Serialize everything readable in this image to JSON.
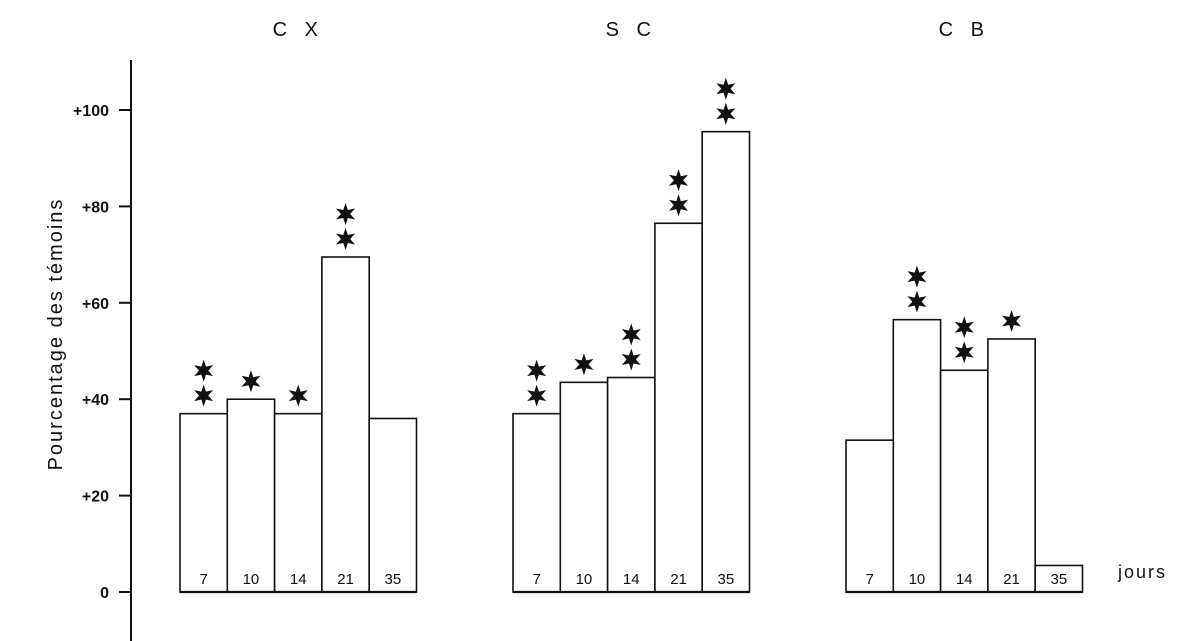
{
  "chart_data": {
    "type": "bar",
    "ylabel": "Pourcentage des témoins",
    "y_ticks": [
      "0",
      "+20",
      "+40",
      "+60",
      "+80",
      "+100"
    ],
    "y_tick_values": [
      0,
      20,
      40,
      60,
      80,
      100
    ],
    "ylim": [
      -20,
      110
    ],
    "unit_label": "jours",
    "groups": [
      {
        "name": "C X",
        "categories": [
          "7",
          "10",
          "14",
          "21",
          "35"
        ],
        "values": [
          37,
          40,
          37,
          69.5,
          36
        ],
        "significance_stars": [
          2,
          1,
          1,
          2,
          0
        ]
      },
      {
        "name": "S C",
        "categories": [
          "7",
          "10",
          "14",
          "21",
          "35"
        ],
        "values": [
          37,
          43.5,
          44.5,
          76.5,
          95.5
        ],
        "significance_stars": [
          2,
          1,
          2,
          2,
          2
        ]
      },
      {
        "name": "C B",
        "categories": [
          "7",
          "10",
          "14",
          "21",
          "35"
        ],
        "values": [
          31.5,
          56.5,
          46,
          52.5,
          5.5
        ],
        "significance_stars": [
          0,
          2,
          2,
          1,
          0
        ]
      }
    ],
    "grid": false,
    "legend": "none"
  }
}
